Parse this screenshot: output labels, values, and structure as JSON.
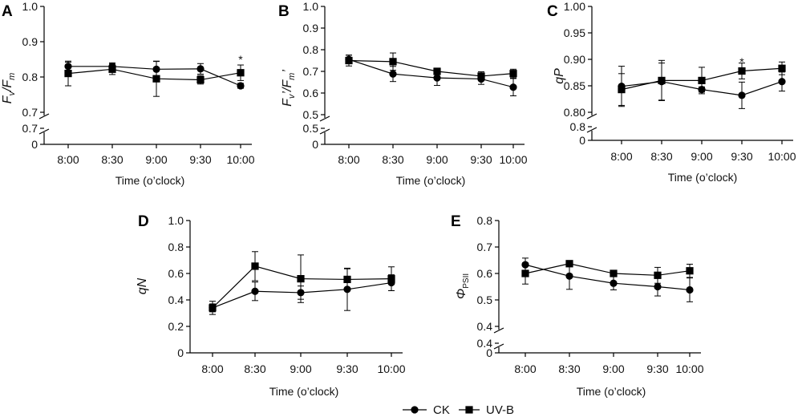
{
  "chart_data": [
    {
      "panel": "A",
      "type": "line",
      "ylabel": "Fv/Fm",
      "ylabel_parts": {
        "main": "F",
        "sub1": "v",
        "slash": "/F",
        "sub2": "m",
        "prime": ""
      },
      "xlabel": "Time (o’clock)",
      "categories": [
        "8:00",
        "8:30",
        "9:00",
        "9:30",
        "10:00"
      ],
      "ylim": [
        0.7,
        1.0
      ],
      "yticks": [
        "1.0",
        "0.9",
        "0.8",
        "0.7"
      ],
      "ybreak_ticks": [
        "0.7",
        "0"
      ],
      "series": [
        {
          "name": "CK",
          "marker": "circle",
          "values": [
            0.83,
            0.83,
            0.822,
            0.823,
            0.775
          ],
          "err": [
            0.012,
            0.01,
            0.022,
            0.015,
            0.007
          ]
        },
        {
          "name": "UV-B",
          "marker": "square",
          "values": [
            0.81,
            0.822,
            0.795,
            0.792,
            0.812
          ],
          "err": [
            0.035,
            0.015,
            0.05,
            0.012,
            0.022
          ]
        }
      ],
      "annotations": [
        {
          "text": "*",
          "category": "10:00",
          "y": 0.852
        }
      ]
    },
    {
      "panel": "B",
      "type": "line",
      "ylabel": "Fv'/Fm'",
      "ylabel_parts": {
        "main": "F",
        "sub1": "v",
        "slash": "’/F",
        "sub2": "m",
        "prime": "’"
      },
      "xlabel": "Time (o’clock)",
      "categories": [
        "8:00",
        "8:30",
        "9:00",
        "9:30",
        "10:00"
      ],
      "ylim": [
        0.5,
        1.0
      ],
      "yticks": [
        "1.0",
        "0.9",
        "0.8",
        "0.7",
        "0.6",
        "0.5"
      ],
      "ybreak_ticks": [
        "0.5",
        "0"
      ],
      "series": [
        {
          "name": "CK",
          "marker": "circle",
          "values": [
            0.755,
            0.688,
            0.67,
            0.665,
            0.627
          ],
          "err": [
            0.02,
            0.035,
            0.035,
            0.025,
            0.04
          ]
        },
        {
          "name": "UV-B",
          "marker": "square",
          "values": [
            0.75,
            0.745,
            0.7,
            0.678,
            0.69
          ],
          "err": [
            0.025,
            0.04,
            0.015,
            0.02,
            0.02
          ]
        }
      ],
      "annotations": []
    },
    {
      "panel": "C",
      "type": "line",
      "ylabel": "qP",
      "xlabel": "Time (o’clock)",
      "categories": [
        "8:00",
        "8:30",
        "9:00",
        "9:30",
        "10:00"
      ],
      "ylim": [
        0.8,
        1.0
      ],
      "yticks": [
        "1.00",
        "0.95",
        "0.90",
        "0.85",
        "0.80"
      ],
      "ybreak_ticks": [
        "0.8",
        "0"
      ],
      "series": [
        {
          "name": "CK",
          "marker": "circle",
          "values": [
            0.849,
            0.858,
            0.843,
            0.832,
            0.858
          ],
          "err": [
            0.038,
            0.035,
            0.005,
            0.025,
            0.018
          ]
        },
        {
          "name": "UV-B",
          "marker": "square",
          "values": [
            0.843,
            0.86,
            0.86,
            0.878,
            0.883
          ],
          "err": [
            0.03,
            0.038,
            0.025,
            0.015,
            0.012
          ]
        }
      ],
      "annotations": [
        {
          "text": "*",
          "category": "9:30",
          "y": 0.897
        }
      ]
    },
    {
      "panel": "D",
      "type": "line",
      "ylabel": "qN",
      "xlabel": "Time (o’clock)",
      "categories": [
        "8:00",
        "8:30",
        "9:00",
        "9:30",
        "10:00"
      ],
      "ylim": [
        0,
        1.0
      ],
      "yticks": [
        "1.0",
        "0.8",
        "0.6",
        "0.4",
        "0.2",
        "0"
      ],
      "ybreak_ticks": [],
      "series": [
        {
          "name": "CK",
          "marker": "circle",
          "values": [
            0.34,
            0.465,
            0.455,
            0.48,
            0.53
          ],
          "err": [
            0.05,
            0.07,
            0.05,
            0.16,
            0.06
          ]
        },
        {
          "name": "UV-B",
          "marker": "square",
          "values": [
            0.34,
            0.655,
            0.56,
            0.555,
            0.56
          ],
          "err": [
            0.03,
            0.11,
            0.18,
            0.08,
            0.09
          ]
        }
      ],
      "annotations": []
    },
    {
      "panel": "E",
      "type": "line",
      "ylabel": "ΦPSII",
      "ylabel_parts": {
        "main": "Φ",
        "sub1": "PSII"
      },
      "xlabel": "Time (o’clock)",
      "categories": [
        "8:00",
        "8:30",
        "9:00",
        "9:30",
        "10:00"
      ],
      "ylim": [
        0.4,
        0.8
      ],
      "yticks": [
        "0.8",
        "0.7",
        "0.6",
        "0.5",
        "0.4"
      ],
      "ybreak_ticks": [
        "0.4",
        "0"
      ],
      "series": [
        {
          "name": "CK",
          "marker": "circle",
          "values": [
            0.633,
            0.59,
            0.563,
            0.55,
            0.538
          ],
          "err": [
            0.025,
            0.05,
            0.025,
            0.035,
            0.045
          ]
        },
        {
          "name": "UV-B",
          "marker": "square",
          "values": [
            0.6,
            0.637,
            0.6,
            0.593,
            0.61
          ],
          "err": [
            0.04,
            0.01,
            0.01,
            0.03,
            0.025
          ]
        }
      ],
      "annotations": []
    }
  ],
  "legend": {
    "placement": "bottom-center",
    "items": [
      {
        "label": "CK",
        "marker": "circle"
      },
      {
        "label": "UV-B",
        "marker": "square"
      }
    ]
  }
}
